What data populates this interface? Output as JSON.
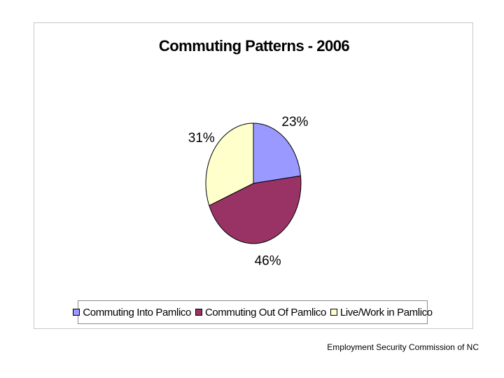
{
  "footer": {
    "source": "Employment Security Commission of NC"
  },
  "chart_data": {
    "type": "pie",
    "title": "Commuting Patterns - 2006",
    "categories": [
      "Commuting Into Pamlico",
      "Commuting Out Of Pamlico",
      "Live/Work in Pamlico"
    ],
    "values": [
      23,
      46,
      31
    ],
    "labels": [
      "23%",
      "46%",
      "31%"
    ],
    "colors": [
      "#9999ff",
      "#993366",
      "#ffffcc"
    ],
    "legend_position": "bottom"
  }
}
